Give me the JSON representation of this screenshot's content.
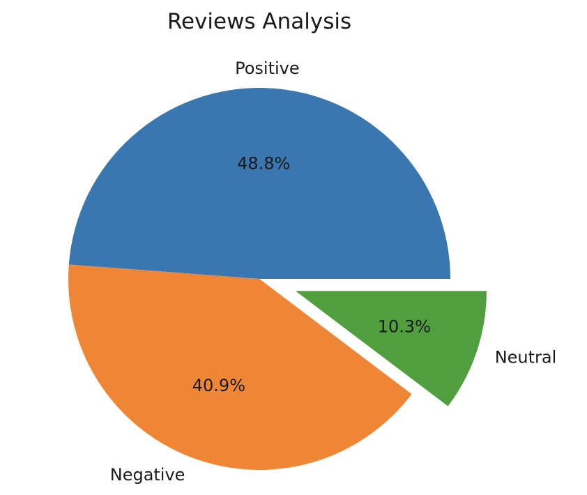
{
  "chart_data": {
    "type": "pie",
    "title": "Reviews Analysis",
    "categories": [
      "Positive",
      "Negative",
      "Neutral"
    ],
    "values": [
      48.8,
      40.9,
      10.3
    ],
    "value_labels": [
      "48.8%",
      "40.9%",
      "10.3%"
    ],
    "exploded": [
      false,
      false,
      true
    ],
    "colors": [
      "#3a76af",
      "#ef8636",
      "#519e3e"
    ],
    "legend": "none"
  }
}
